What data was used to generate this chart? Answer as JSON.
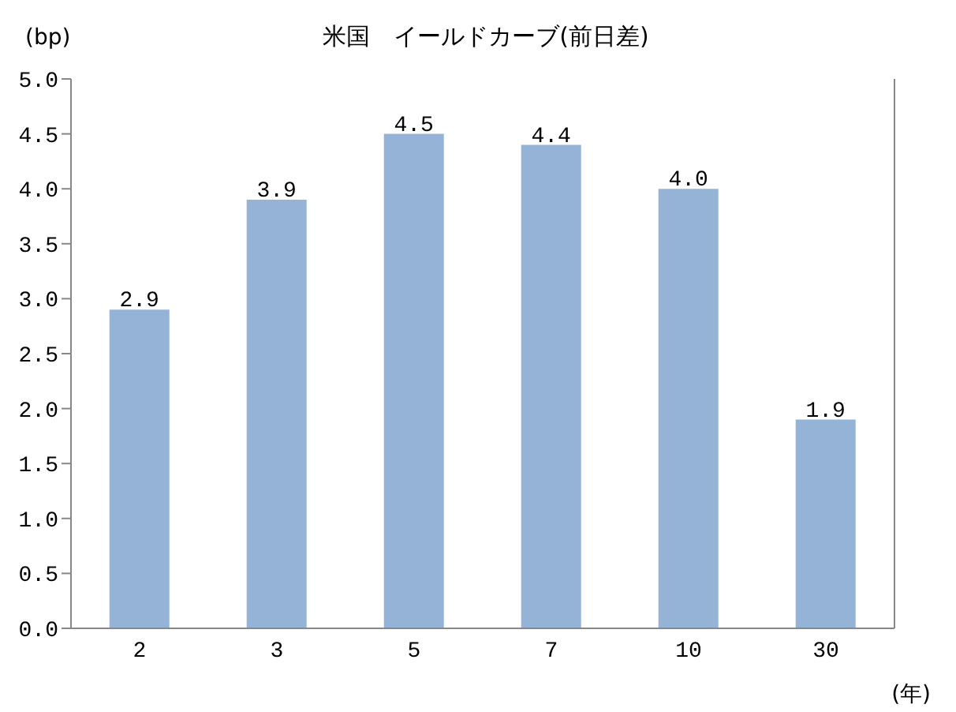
{
  "chart_data": {
    "type": "bar",
    "title": "米国　イールドカーブ(前日差)",
    "ylabel": "(bp)",
    "xlabel": "(年)",
    "categories": [
      "2",
      "3",
      "5",
      "7",
      "10",
      "30"
    ],
    "series": [
      {
        "color": "#95b3d7",
        "values": [
          2.9,
          3.9,
          4.5,
          4.4,
          4.0,
          1.9
        ],
        "value_labels": [
          "2.9",
          "3.9",
          "4.5",
          "4.4",
          "4.0",
          "1.9"
        ]
      }
    ],
    "ylim": [
      0,
      5
    ],
    "yticks": [
      {
        "value": 0,
        "label": "0.0"
      },
      {
        "value": 0.5,
        "label": "0.5"
      },
      {
        "value": 1,
        "label": "1.0"
      },
      {
        "value": 1.5,
        "label": "1.5"
      },
      {
        "value": 2,
        "label": "2.0"
      },
      {
        "value": 2.5,
        "label": "2.5"
      },
      {
        "value": 3,
        "label": "3.0"
      },
      {
        "value": 3.5,
        "label": "3.5"
      },
      {
        "value": 4,
        "label": "4.0"
      },
      {
        "value": 4.5,
        "label": "4.5"
      },
      {
        "value": 5,
        "label": "5.0"
      }
    ],
    "grid": false
  }
}
